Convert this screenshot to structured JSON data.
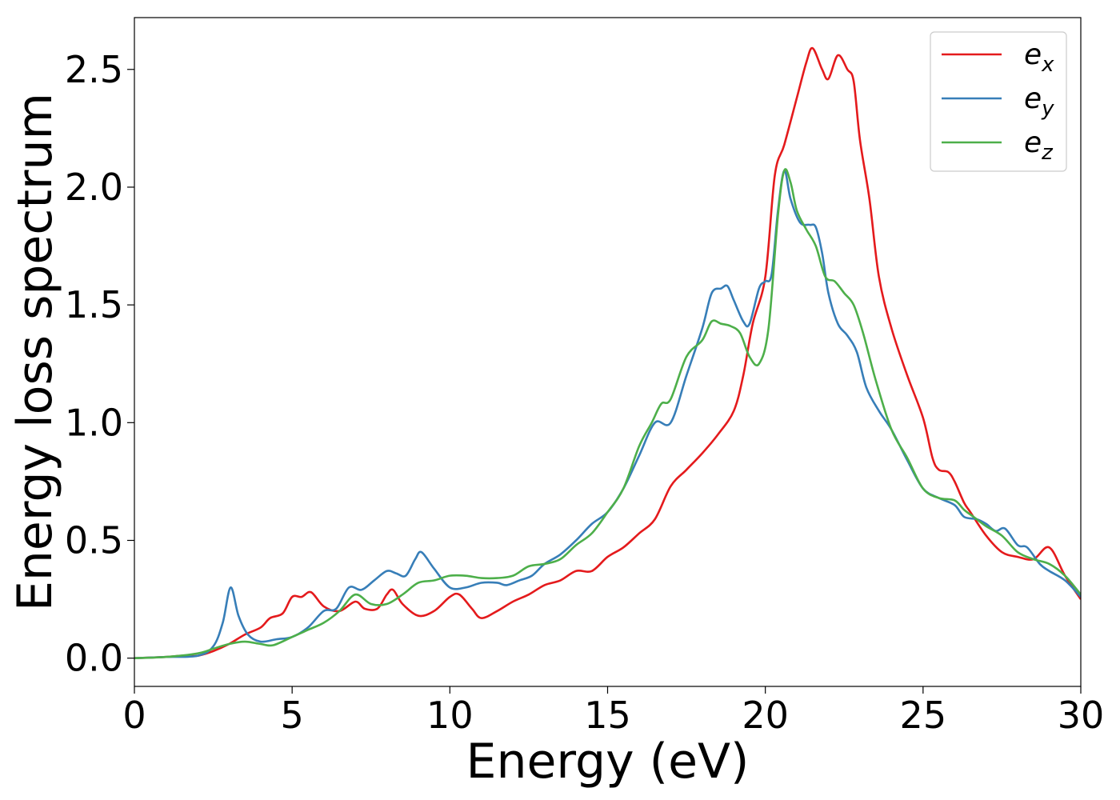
{
  "chart_data": {
    "type": "line",
    "title": "",
    "xlabel": "Energy (eV)",
    "ylabel": "Energy loss spectrum",
    "xlim": [
      0,
      30
    ],
    "ylim": [
      -0.12,
      2.72
    ],
    "xticks": [
      0,
      5,
      10,
      15,
      20,
      25,
      30
    ],
    "xtick_labels": [
      "0",
      "5",
      "10",
      "15",
      "20",
      "25",
      "30"
    ],
    "yticks": [
      0.0,
      0.5,
      1.0,
      1.5,
      2.0,
      2.5
    ],
    "ytick_labels": [
      "0.0",
      "0.5",
      "1.0",
      "1.5",
      "2.0",
      "2.5"
    ],
    "grid": false,
    "legend_position": "top-right",
    "series": [
      {
        "name": "e_x",
        "label_base": "e",
        "label_sub": "x",
        "color": "#e41a1c",
        "points": [
          [
            0,
            0
          ],
          [
            1,
            0.005
          ],
          [
            1.5,
            0.01
          ],
          [
            2,
            0.01
          ],
          [
            2.5,
            0.03
          ],
          [
            3,
            0.06
          ],
          [
            3.5,
            0.1
          ],
          [
            4,
            0.13
          ],
          [
            4.3,
            0.17
          ],
          [
            4.7,
            0.19
          ],
          [
            5,
            0.26
          ],
          [
            5.3,
            0.26
          ],
          [
            5.6,
            0.28
          ],
          [
            6,
            0.22
          ],
          [
            6.5,
            0.2
          ],
          [
            7,
            0.24
          ],
          [
            7.3,
            0.21
          ],
          [
            7.7,
            0.21
          ],
          [
            8,
            0.27
          ],
          [
            8.2,
            0.29
          ],
          [
            8.5,
            0.23
          ],
          [
            9,
            0.18
          ],
          [
            9.5,
            0.2
          ],
          [
            10,
            0.26
          ],
          [
            10.3,
            0.27
          ],
          [
            10.7,
            0.21
          ],
          [
            11,
            0.17
          ],
          [
            11.5,
            0.2
          ],
          [
            12,
            0.24
          ],
          [
            12.5,
            0.27
          ],
          [
            13,
            0.31
          ],
          [
            13.5,
            0.33
          ],
          [
            14,
            0.37
          ],
          [
            14.5,
            0.37
          ],
          [
            15,
            0.43
          ],
          [
            15.5,
            0.47
          ],
          [
            16,
            0.53
          ],
          [
            16.5,
            0.59
          ],
          [
            17,
            0.73
          ],
          [
            17.5,
            0.8
          ],
          [
            18,
            0.87
          ],
          [
            18.5,
            0.95
          ],
          [
            19,
            1.05
          ],
          [
            19.3,
            1.2
          ],
          [
            19.6,
            1.42
          ],
          [
            20,
            1.62
          ],
          [
            20.3,
            2.05
          ],
          [
            20.6,
            2.18
          ],
          [
            21,
            2.38
          ],
          [
            21.3,
            2.53
          ],
          [
            21.5,
            2.59
          ],
          [
            21.8,
            2.5
          ],
          [
            22,
            2.46
          ],
          [
            22.3,
            2.56
          ],
          [
            22.6,
            2.5
          ],
          [
            22.8,
            2.45
          ],
          [
            23,
            2.2
          ],
          [
            23.3,
            1.95
          ],
          [
            23.6,
            1.62
          ],
          [
            24,
            1.4
          ],
          [
            24.5,
            1.2
          ],
          [
            25,
            1.02
          ],
          [
            25.3,
            0.85
          ],
          [
            25.5,
            0.8
          ],
          [
            25.8,
            0.79
          ],
          [
            26,
            0.75
          ],
          [
            26.3,
            0.66
          ],
          [
            26.5,
            0.62
          ],
          [
            27,
            0.52
          ],
          [
            27.5,
            0.45
          ],
          [
            28,
            0.43
          ],
          [
            28.5,
            0.42
          ],
          [
            29,
            0.47
          ],
          [
            29.5,
            0.35
          ],
          [
            30,
            0.25
          ]
        ]
      },
      {
        "name": "e_y",
        "label_base": "e",
        "label_sub": "y",
        "color": "#377eb8",
        "points": [
          [
            0,
            0
          ],
          [
            1,
            0.005
          ],
          [
            2,
            0.01
          ],
          [
            2.5,
            0.05
          ],
          [
            2.8,
            0.15
          ],
          [
            3.05,
            0.3
          ],
          [
            3.3,
            0.18
          ],
          [
            3.6,
            0.1
          ],
          [
            4,
            0.07
          ],
          [
            4.5,
            0.08
          ],
          [
            5,
            0.09
          ],
          [
            5.5,
            0.13
          ],
          [
            6,
            0.2
          ],
          [
            6.4,
            0.21
          ],
          [
            6.8,
            0.3
          ],
          [
            7.2,
            0.29
          ],
          [
            7.6,
            0.33
          ],
          [
            8,
            0.37
          ],
          [
            8.3,
            0.36
          ],
          [
            8.6,
            0.35
          ],
          [
            8.9,
            0.42
          ],
          [
            9.1,
            0.45
          ],
          [
            9.5,
            0.38
          ],
          [
            10,
            0.3
          ],
          [
            10.5,
            0.3
          ],
          [
            11,
            0.32
          ],
          [
            11.5,
            0.32
          ],
          [
            11.8,
            0.31
          ],
          [
            12.2,
            0.33
          ],
          [
            12.6,
            0.35
          ],
          [
            13,
            0.4
          ],
          [
            13.5,
            0.44
          ],
          [
            14,
            0.5
          ],
          [
            14.5,
            0.57
          ],
          [
            15,
            0.62
          ],
          [
            15.5,
            0.72
          ],
          [
            16,
            0.86
          ],
          [
            16.5,
            1.0
          ],
          [
            17,
            1.0
          ],
          [
            17.5,
            1.2
          ],
          [
            18,
            1.4
          ],
          [
            18.3,
            1.55
          ],
          [
            18.6,
            1.57
          ],
          [
            18.8,
            1.58
          ],
          [
            19,
            1.52
          ],
          [
            19.3,
            1.43
          ],
          [
            19.5,
            1.42
          ],
          [
            19.8,
            1.57
          ],
          [
            20,
            1.6
          ],
          [
            20.2,
            1.63
          ],
          [
            20.4,
            1.9
          ],
          [
            20.6,
            2.07
          ],
          [
            20.8,
            1.95
          ],
          [
            21.1,
            1.85
          ],
          [
            21.4,
            1.84
          ],
          [
            21.6,
            1.83
          ],
          [
            21.8,
            1.72
          ],
          [
            22,
            1.55
          ],
          [
            22.3,
            1.42
          ],
          [
            22.6,
            1.37
          ],
          [
            22.9,
            1.3
          ],
          [
            23.2,
            1.15
          ],
          [
            23.6,
            1.05
          ],
          [
            24,
            0.97
          ],
          [
            24.5,
            0.84
          ],
          [
            25,
            0.72
          ],
          [
            25.5,
            0.68
          ],
          [
            26,
            0.65
          ],
          [
            26.3,
            0.6
          ],
          [
            26.7,
            0.59
          ],
          [
            27,
            0.57
          ],
          [
            27.3,
            0.54
          ],
          [
            27.6,
            0.55
          ],
          [
            28,
            0.48
          ],
          [
            28.3,
            0.47
          ],
          [
            28.7,
            0.4
          ],
          [
            29,
            0.37
          ],
          [
            29.5,
            0.33
          ],
          [
            30,
            0.26
          ]
        ]
      },
      {
        "name": "e_z",
        "label_base": "e",
        "label_sub": "z",
        "color": "#4daf4a",
        "points": [
          [
            0,
            0
          ],
          [
            1,
            0.005
          ],
          [
            2,
            0.02
          ],
          [
            2.5,
            0.04
          ],
          [
            3,
            0.06
          ],
          [
            3.5,
            0.07
          ],
          [
            4,
            0.06
          ],
          [
            4.4,
            0.055
          ],
          [
            5,
            0.09
          ],
          [
            5.5,
            0.12
          ],
          [
            6,
            0.15
          ],
          [
            6.5,
            0.2
          ],
          [
            7,
            0.27
          ],
          [
            7.5,
            0.23
          ],
          [
            8,
            0.23
          ],
          [
            8.5,
            0.27
          ],
          [
            9,
            0.32
          ],
          [
            9.5,
            0.33
          ],
          [
            10,
            0.35
          ],
          [
            10.5,
            0.35
          ],
          [
            11,
            0.34
          ],
          [
            11.5,
            0.34
          ],
          [
            12,
            0.35
          ],
          [
            12.5,
            0.39
          ],
          [
            13,
            0.4
          ],
          [
            13.5,
            0.42
          ],
          [
            14,
            0.48
          ],
          [
            14.5,
            0.53
          ],
          [
            15,
            0.62
          ],
          [
            15.5,
            0.72
          ],
          [
            16,
            0.9
          ],
          [
            16.4,
            1.0
          ],
          [
            16.7,
            1.08
          ],
          [
            17,
            1.1
          ],
          [
            17.5,
            1.28
          ],
          [
            18,
            1.35
          ],
          [
            18.3,
            1.43
          ],
          [
            18.6,
            1.42
          ],
          [
            18.9,
            1.41
          ],
          [
            19.2,
            1.38
          ],
          [
            19.5,
            1.28
          ],
          [
            19.8,
            1.25
          ],
          [
            20.1,
            1.4
          ],
          [
            20.4,
            1.88
          ],
          [
            20.6,
            2.07
          ],
          [
            20.8,
            2.02
          ],
          [
            21,
            1.9
          ],
          [
            21.3,
            1.82
          ],
          [
            21.6,
            1.75
          ],
          [
            21.9,
            1.62
          ],
          [
            22.2,
            1.6
          ],
          [
            22.5,
            1.55
          ],
          [
            22.8,
            1.5
          ],
          [
            23.1,
            1.38
          ],
          [
            23.5,
            1.18
          ],
          [
            24,
            0.97
          ],
          [
            24.5,
            0.85
          ],
          [
            25,
            0.72
          ],
          [
            25.5,
            0.68
          ],
          [
            26,
            0.67
          ],
          [
            26.3,
            0.63
          ],
          [
            26.6,
            0.6
          ],
          [
            27,
            0.56
          ],
          [
            27.5,
            0.52
          ],
          [
            28,
            0.45
          ],
          [
            28.5,
            0.42
          ],
          [
            29,
            0.4
          ],
          [
            29.5,
            0.35
          ],
          [
            30,
            0.27
          ]
        ]
      }
    ]
  }
}
